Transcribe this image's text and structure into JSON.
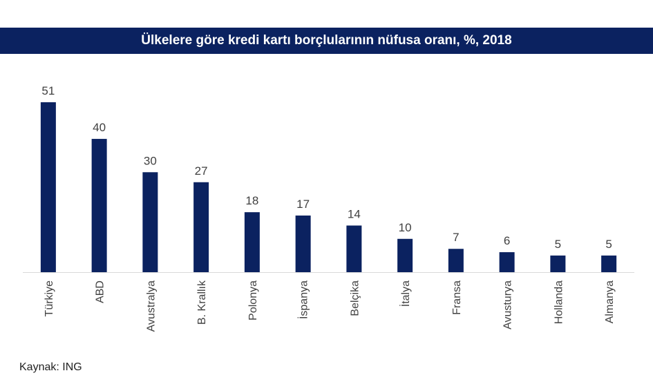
{
  "chart_data": {
    "type": "bar",
    "title": "Ülkelere göre kredi kartı borçlularının nüfusa oranı, %, 2018",
    "categories": [
      "Türkiye",
      "ABD",
      "Avustralya",
      "B. Krallık",
      "Polonya",
      "İspanya",
      "Belçika",
      "İtalya",
      "Fransa",
      "Avusturya",
      "Hollanda",
      "Almanya"
    ],
    "values": [
      51,
      40,
      30,
      27,
      18,
      17,
      14,
      10,
      7,
      6,
      5,
      5
    ],
    "xlabel": "",
    "ylabel": "",
    "ylim": [
      0,
      51
    ],
    "grid": false,
    "legend": "none",
    "bar_color": "#0b2260"
  },
  "source": "Kaynak: ING"
}
